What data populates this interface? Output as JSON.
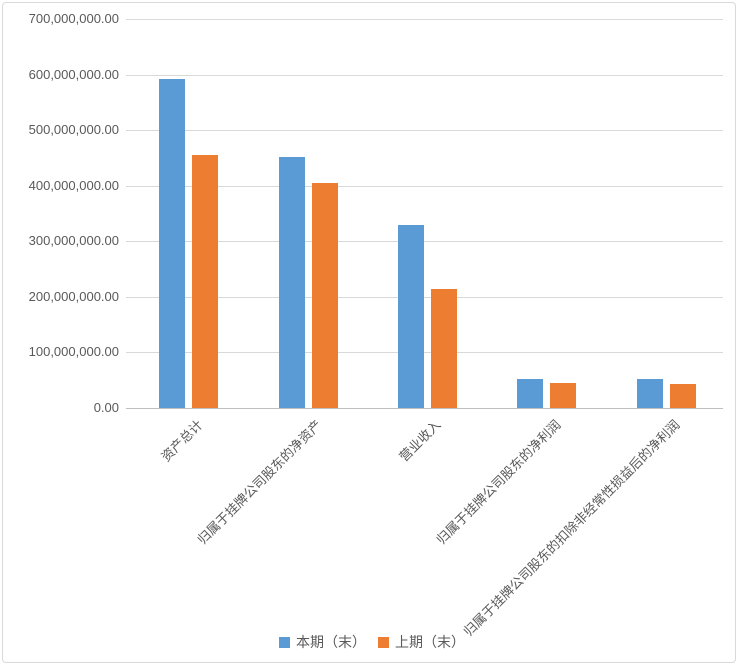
{
  "chart_data": {
    "type": "bar",
    "title": "",
    "xlabel": "",
    "ylabel": "",
    "categories": [
      "资产总计",
      "归属于挂牌公司股东的净资产",
      "营业收入",
      "归属于挂牌公司股东的净利润",
      "归属于挂牌公司股东的扣除非经常性损益后的净利润"
    ],
    "series": [
      {
        "name": "本期（末）",
        "color": "#5b9bd5",
        "values": [
          592000000,
          452000000,
          329000000,
          52000000,
          52000000
        ]
      },
      {
        "name": "上期（末）",
        "color": "#ed7d31",
        "values": [
          455000000,
          405000000,
          214000000,
          45000000,
          44000000
        ]
      }
    ],
    "ylim": [
      0,
      700000000
    ],
    "ytick_interval": 100000000,
    "ytick_labels": [
      "0.00",
      "100,000,000.00",
      "200,000,000.00",
      "300,000,000.00",
      "400,000,000.00",
      "500,000,000.00",
      "600,000,000.00",
      "700,000,000.00"
    ],
    "grid": true,
    "legend_position": "bottom",
    "colors": {
      "gridline": "#d9d9d9",
      "axis_line": "#bfbfbf",
      "text": "#595959",
      "frame_border": "#d9d9d9",
      "background": "#ffffff"
    }
  }
}
